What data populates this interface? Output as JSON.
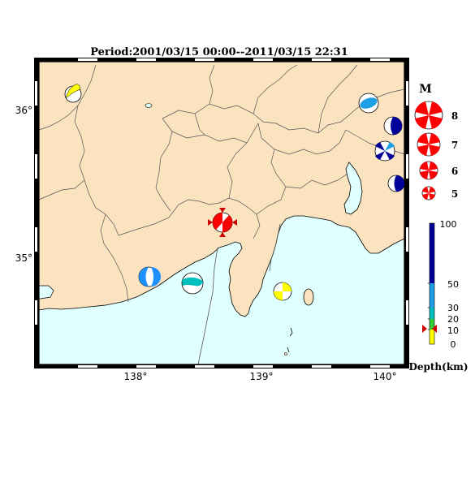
{
  "title": "Period:2001/03/15 00:00--2011/03/15 22:31",
  "lat_labels": [
    "36°",
    "35°"
  ],
  "lon_labels": [
    "138°",
    "139°",
    "140°"
  ],
  "legend": {
    "magnitude_header": "M",
    "magnitudes": [
      "8",
      "7",
      "6",
      "5"
    ],
    "depth_ticks": [
      "100",
      "50",
      "30",
      "20",
      "10",
      "0"
    ],
    "depth_label": "Depth(km)",
    "current_depth_km": 12
  },
  "colors": {
    "land": "#fbe3c0",
    "sea": "#e0ffff",
    "depth_0_10": "#ffff00",
    "depth_10_20": "#33cc33",
    "depth_20_30": "#00bfbf",
    "depth_30_50": "#1e9fe6",
    "depth_50_100": "#000099",
    "mechanism_main": "#ff0000"
  },
  "events": [
    {
      "name": "yellow-nw",
      "color": "#ffff00"
    },
    {
      "name": "lightblue-ne",
      "color": "#1e9fe6"
    },
    {
      "name": "darkblue-east-1",
      "color": "#000099"
    },
    {
      "name": "darkblue-east-2",
      "color": "#000099"
    },
    {
      "name": "darkblue-east-3",
      "color": "#000099"
    },
    {
      "name": "blue-west",
      "color": "#1e90ff"
    },
    {
      "name": "teal-center",
      "color": "#00bfbf"
    },
    {
      "name": "yellow-izu",
      "color": "#ffff00"
    },
    {
      "name": "main-red",
      "color": "#ff0000"
    }
  ]
}
